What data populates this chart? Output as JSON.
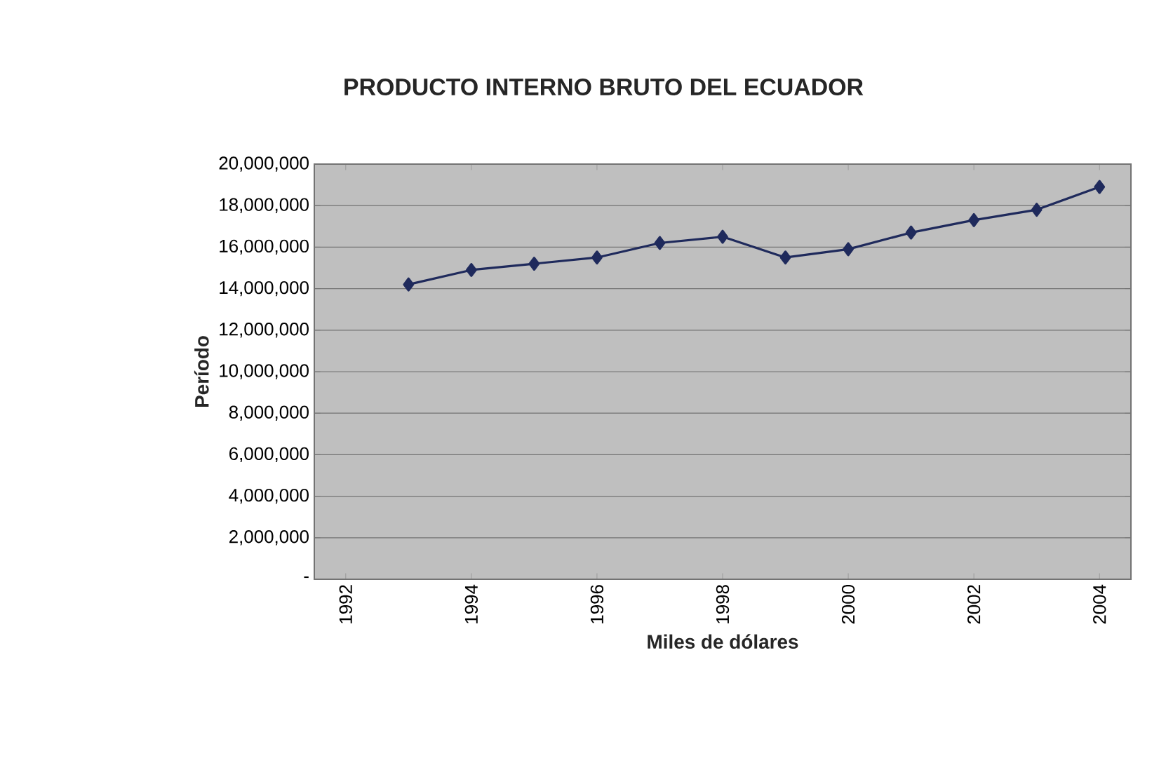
{
  "chart_data": {
    "type": "line",
    "title": "PRODUCTO INTERNO BRUTO DEL ECUADOR",
    "xlabel": "Miles de dólares",
    "ylabel": "Período",
    "categories": [
      "1992",
      null,
      "1994",
      null,
      "1996",
      null,
      "1998",
      null,
      "2000",
      null,
      "2002",
      null,
      "2004"
    ],
    "series": [
      {
        "color": "#1f2a5c",
        "values": [
          null,
          14200000,
          14900000,
          15200000,
          15500000,
          16200000,
          16500000,
          15500000,
          15900000,
          16700000,
          17300000,
          17800000,
          18900000
        ]
      }
    ],
    "ylim": [
      0,
      20000000
    ],
    "yticks": [
      {
        "value": 0,
        "label": "-"
      },
      {
        "value": 2000000,
        "label": "2,000,000"
      },
      {
        "value": 4000000,
        "label": "4,000,000"
      },
      {
        "value": 6000000,
        "label": "6,000,000"
      },
      {
        "value": 8000000,
        "label": "8,000,000"
      },
      {
        "value": 10000000,
        "label": "10,000,000"
      },
      {
        "value": 12000000,
        "label": "12,000,000"
      },
      {
        "value": 14000000,
        "label": "14,000,000"
      },
      {
        "value": 16000000,
        "label": "16,000,000"
      },
      {
        "value": 18000000,
        "label": "18,000,000"
      },
      {
        "value": 20000000,
        "label": "20,000,000"
      }
    ],
    "grid": "y",
    "marker": "diamond",
    "line_style": "solid"
  }
}
